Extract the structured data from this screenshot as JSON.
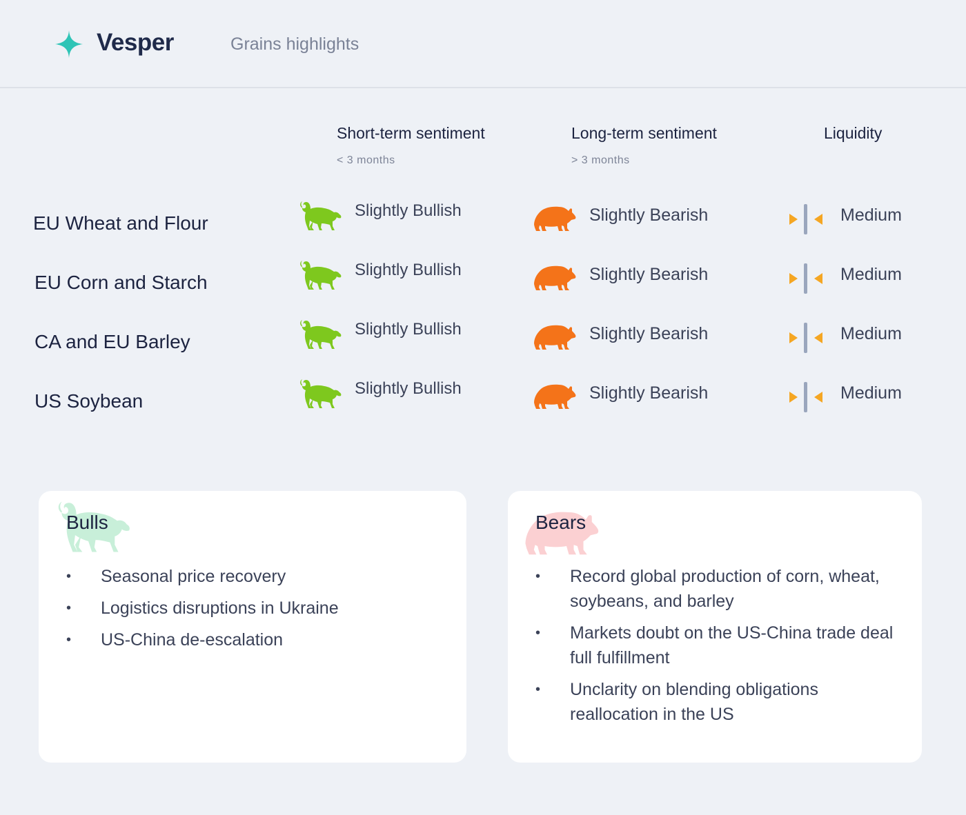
{
  "header": {
    "brand": "Vesper",
    "subtitle": "Grains highlights",
    "logo_icon": "sparkle-star-icon",
    "accent_color": "#2ec4b6"
  },
  "columns": {
    "short_term": {
      "title": "Short-term sentiment",
      "sub": "< 3 months"
    },
    "long_term": {
      "title": "Long-term sentiment",
      "sub": "> 3 months"
    },
    "liquidity": {
      "title": "Liquidity"
    }
  },
  "rows": [
    {
      "name": "EU Wheat and Flour",
      "short": "Slightly Bullish",
      "long": "Slightly Bearish",
      "liquidity": "Medium"
    },
    {
      "name": "EU Corn and Starch",
      "short": "Slightly Bullish",
      "long": "Slightly Bearish",
      "liquidity": "Medium"
    },
    {
      "name": "CA and EU Barley",
      "short": "Slightly Bullish",
      "long": "Slightly Bearish",
      "liquidity": "Medium"
    },
    {
      "name": "US Soybean",
      "short": "Slightly Bullish",
      "long": "Slightly Bearish",
      "liquidity": "Medium"
    }
  ],
  "icons": {
    "bull": "bull-icon",
    "bear": "bear-icon",
    "liquidity": "liquidity-gauge-icon"
  },
  "colors": {
    "bull": "#7ec81e",
    "bear": "#f47319",
    "liquidity_arrow": "#f5a623",
    "liquidity_bar": "#9aa6bd",
    "bull_watermark": "#c8efd9",
    "bear_watermark": "#fbd0d2"
  },
  "bulls": {
    "title": "Bulls",
    "items": [
      "Seasonal price recovery",
      "Logistics disruptions in Ukraine",
      "US-China de-escalation"
    ]
  },
  "bears": {
    "title": "Bears",
    "items": [
      "Record global production of corn, wheat, soybeans, and barley",
      "Markets doubt on the US-China trade deal full fulfillment",
      "Unclarity on blending obligations reallocation in the US"
    ]
  }
}
